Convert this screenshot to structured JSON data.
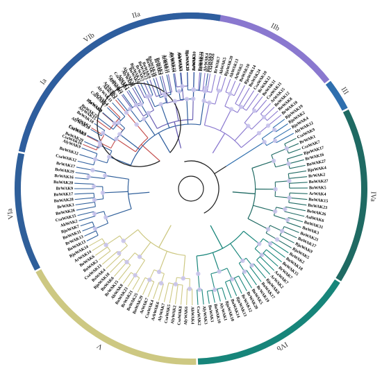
{
  "clades": [
    {
      "label": "Ia",
      "color": "#c5504f",
      "leaves": [
        "CsaWAK16",
        "CsaWAK3",
        "AtWAK2",
        "AlyWAK15",
        "BjuWAK3",
        "BrWAK4",
        "AhWAK8"
      ]
    },
    {
      "label": "IIa",
      "color": "#6a5fb4",
      "leaves": [
        "ArhWAK1",
        "CsaWAK14",
        "AlyWAK8",
        "BnWAK9",
        "BrWAK5",
        "BoWAK9",
        "BjuWAK16",
        "BoWAK3",
        "AtWAK11",
        "BrWAK22",
        "AlyWAK5",
        "BjuWAK15",
        "AtWAK1"
      ]
    },
    {
      "label": "IIb",
      "color": "#8a78cf",
      "leaves": [
        "BnWAK22",
        "AlyWAK4",
        "CsaWAK6",
        "BrWAK7",
        "AhWAK5",
        "BjuWAK20",
        "AhWAK13",
        "AtWAK5",
        "BoWAK10",
        "BjuWAK14",
        "BnWAK24",
        "CsaWAK10",
        "BrWAK12",
        "BoWAK11",
        "CsaWAK11",
        "AtWAK15",
        "BoWAK12",
        "BnWAK8",
        "BrWAK10"
      ]
    },
    {
      "label": "III",
      "color": "#2f6fae",
      "leaves": [
        "BjuWAK19",
        "BjuWAK2",
        "BjuWAK4",
        "AlyWAK12"
      ]
    },
    {
      "label": "IVa",
      "color": "#1f6a63",
      "leaves": [
        "CsaWAK9",
        "BrWAK1",
        "CsaWAK7",
        "BjuWAK17",
        "BrWAK16",
        "BnWAK27",
        "BjuWAK4",
        "BrWAK2",
        "BoWAK27",
        "BoWAK5",
        "ArWAK4",
        "BnWAK15",
        "BnWAK23",
        "BoWAK26",
        "AalWAK6",
        "BnWAK31",
        "BnWAK3",
        "BoWAK21",
        "BnWAK17",
        "BjuWAK9",
        "BjuWAK5"
      ]
    },
    {
      "label": "IVb",
      "color": "#17857a",
      "leaves": [
        "BoWAK2",
        "BnWAK18",
        "BoWAK15",
        "BrWAK7",
        "AaWAK7",
        "ArWAK2",
        "BjuWAK8",
        "BnWAK17",
        "BrWAK19",
        "BnWAK5",
        "BrWAK20",
        "BrWAK12",
        "BjuWAK13",
        "BnWAK14",
        "BjuWAK10",
        "AlyWAK1",
        "BnWAK10",
        "BnWAK1",
        "AlyWAK3",
        "CsaWAK2"
      ]
    },
    {
      "label": "V",
      "color": "#cdc882",
      "leaves": [
        "AhWAK4",
        "AlyWAK6",
        "CsaWAK8",
        "AlyWAK2",
        "CsaWAK5",
        "AlyWAK7",
        "ArhWAK6",
        "CsaWAK4",
        "AtWAK7",
        "BnWAK29",
        "BoWAK25",
        "BrWAK21",
        "BnWAK23",
        "AhWAK8",
        "BrWAK15",
        "BnWAK6",
        "BjuWAK18",
        "BoWAK4",
        "CsaWAK13",
        "BnWAK2",
        "BoWAK6",
        "ArWAK14",
        "BjuWAK14"
      ]
    },
    {
      "label": "VIa",
      "color": "#2f5f9a",
      "leaves": [
        "BnWAK13",
        "BrWAK13",
        "BnWAK11",
        "BjuWAK7",
        "AhWAK2",
        "CsaWAK15",
        "BnWAK26",
        "BrWAK3",
        "BnWAK28",
        "BoWAK17",
        "BrWAK9",
        "BnWAK20",
        "BrWAK16",
        "BoWAK19",
        "BrWAK17"
      ]
    },
    {
      "label": "VIb",
      "color": "#2e5e9e",
      "leaves": [
        "CsaWAK12",
        "BnWAK12",
        "AlyWAK9",
        "BoWAK29",
        "CsaWAK6",
        "AlyWAK10",
        "BoWAK18",
        "BnWAK25",
        "ArWAK9",
        "CsaWAK17",
        "AlyWAK11",
        "ArhWAK3",
        "CsaWAK22",
        "AtWAK7",
        "AlyWAK10",
        "BjuWAK15",
        "BoWAK13",
        "BnWAK30",
        "BrWAK8",
        "AtWAK11",
        "AlyWAK14",
        "ArhWAK4",
        "BnWAK20",
        "BoWAK10",
        "BoWAK19",
        "BjuWAK9"
      ]
    }
  ]
}
